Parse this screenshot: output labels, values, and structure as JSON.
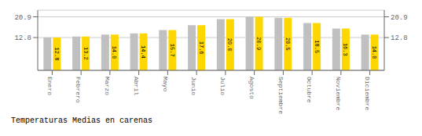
{
  "chart_data": {
    "type": "bar",
    "title": "Temperaturas Medias en carenas",
    "categories": [
      "Enero",
      "Febrero",
      "Marzo",
      "Abril",
      "Mayo",
      "Junio",
      "Julio",
      "Agosto",
      "Septiembre",
      "Octubre",
      "Noviembre",
      "Diciembre"
    ],
    "series": [
      {
        "color": "#C0C0C0",
        "values": [
          12.8,
          13.2,
          14.0,
          14.4,
          15.7,
          17.6,
          20.0,
          20.9,
          20.5,
          18.5,
          16.3,
          14.0
        ]
      },
      {
        "color": "#FFD700",
        "values": [
          12.8,
          13.2,
          14.0,
          14.4,
          15.7,
          17.6,
          20.0,
          20.9,
          20.5,
          18.5,
          16.3,
          14.0
        ],
        "value_labels": [
          "12.8",
          "13.2",
          "14.0",
          "14.4",
          "15.7",
          "17.6",
          "20.0",
          "20.9",
          "20.5",
          "18.5",
          "16.3",
          "14.0"
        ]
      }
    ],
    "ylim": [
      0,
      23.5
    ],
    "yticks": [
      12.8,
      20.9
    ],
    "y2lim": [
      0,
      23.5
    ],
    "y2ticks": [
      12.8,
      20.9
    ],
    "grid": true,
    "data_labels": true
  }
}
